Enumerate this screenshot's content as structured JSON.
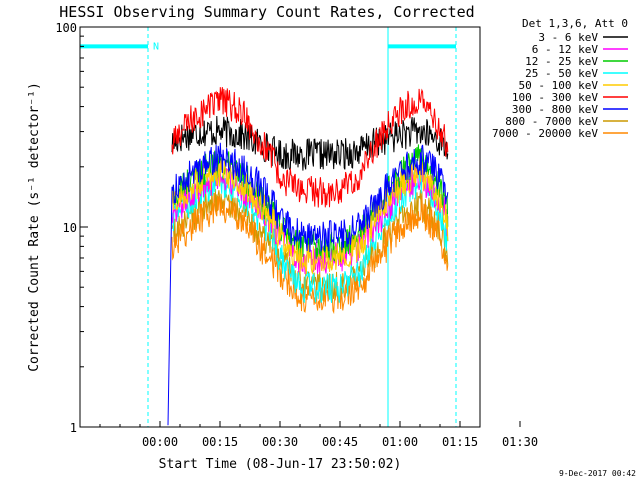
{
  "chart_data": {
    "type": "line",
    "title": "HESSI Observing Summary Count Rates, Corrected",
    "xlabel": "Start Time (08-Jun-17 23:50:02)",
    "ylabel": "Corrected Count Rate (s⁻¹ detector⁻¹)",
    "yscale": "log",
    "xlim": [
      -10,
      90
    ],
    "ylim": [
      1,
      100
    ],
    "x_unit": "minutes after 08-Jun-17 23:50:02",
    "x_ticks": [
      {
        "value": 10,
        "label": "00:00"
      },
      {
        "value": 25,
        "label": "00:15"
      },
      {
        "value": 40,
        "label": "00:30"
      },
      {
        "value": 55,
        "label": "00:45"
      },
      {
        "value": 70,
        "label": "01:00"
      },
      {
        "value": 85,
        "label": "01:15"
      },
      {
        "value": 100,
        "label": "01:30"
      }
    ],
    "y_ticks": [
      {
        "value": 1,
        "label": "1"
      },
      {
        "value": 10,
        "label": "10"
      },
      {
        "value": 100,
        "label": "100"
      }
    ],
    "legend_title": "Det 1,3,6, Att 0",
    "legend_position": "right",
    "grid": false,
    "series": [
      {
        "name": "3 - 6 keV",
        "color": "#000000",
        "x": [
          13,
          15,
          20,
          25,
          30,
          35,
          40,
          45,
          50,
          55,
          60,
          65,
          70,
          75,
          80,
          82
        ],
        "y": [
          26,
          28,
          30,
          30,
          29,
          26,
          23,
          23,
          23,
          23,
          24,
          27,
          29,
          30,
          27,
          24
        ]
      },
      {
        "name": "6 - 12 keV",
        "color": "#ff00ff",
        "x": [
          13,
          15,
          20,
          25,
          30,
          35,
          40,
          45,
          50,
          55,
          60,
          65,
          70,
          75,
          80,
          82
        ],
        "y": [
          12,
          13,
          16,
          18,
          16,
          13,
          9,
          7,
          7,
          7,
          8,
          11,
          15,
          18,
          14,
          10
        ]
      },
      {
        "name": "12 - 25 keV",
        "color": "#00cc00",
        "x": [
          13,
          15,
          20,
          25,
          30,
          35,
          40,
          45,
          50,
          55,
          60,
          65,
          70,
          75,
          80,
          82
        ],
        "y": [
          14,
          15,
          19,
          21,
          19,
          14,
          10,
          8,
          8,
          8,
          9,
          13,
          18,
          22,
          16,
          11
        ]
      },
      {
        "name": "25 - 50 keV",
        "color": "#00ffff",
        "x": [
          13,
          15,
          20,
          25,
          30,
          35,
          40,
          45,
          50,
          55,
          60,
          65,
          70,
          75,
          80,
          82
        ],
        "y": [
          11,
          12,
          15,
          17,
          15,
          11,
          7,
          5,
          5,
          5,
          6,
          10,
          14,
          17,
          12,
          8
        ]
      },
      {
        "name": "50 - 100 keV",
        "color": "#ffcc00",
        "x": [
          13,
          15,
          20,
          25,
          30,
          35,
          40,
          45,
          50,
          55,
          60,
          65,
          70,
          75,
          80,
          82
        ],
        "y": [
          13,
          14,
          17,
          19,
          17,
          13,
          9,
          7,
          7,
          7,
          8,
          12,
          16,
          19,
          14,
          10
        ]
      },
      {
        "name": "100 - 300 keV",
        "color": "#ff0000",
        "x": [
          13,
          15,
          20,
          25,
          30,
          35,
          40,
          45,
          50,
          55,
          60,
          65,
          70,
          75,
          80,
          82
        ],
        "y": [
          25,
          30,
          37,
          43,
          38,
          27,
          18,
          15,
          15,
          15,
          18,
          28,
          38,
          43,
          31,
          24
        ]
      },
      {
        "name": "300 - 800 keV",
        "color": "#0000ff",
        "x": [
          13,
          15,
          20,
          25,
          30,
          35,
          40,
          45,
          50,
          55,
          60,
          65,
          70,
          75,
          80,
          82
        ],
        "y": [
          15,
          16,
          20,
          22,
          20,
          16,
          11,
          9,
          9,
          9,
          10,
          14,
          19,
          22,
          18,
          13
        ]
      },
      {
        "name": "800 - 7000 keV",
        "color": "#cc9900",
        "x": [
          13,
          15,
          20,
          25,
          30,
          35,
          40,
          45,
          50,
          55,
          60,
          65,
          70,
          75,
          80,
          82
        ],
        "y": [
          9,
          10,
          12,
          14,
          12,
          9,
          7,
          5,
          5,
          5,
          6,
          8,
          11,
          13,
          10,
          7
        ]
      },
      {
        "name": "7000 - 20000 keV",
        "color": "#ff8800",
        "x": [
          13,
          15,
          20,
          25,
          30,
          35,
          40,
          45,
          50,
          55,
          60,
          65,
          70,
          75,
          80,
          82
        ],
        "y": [
          8,
          9,
          11,
          13,
          11,
          8,
          6,
          4.5,
          4.5,
          4.5,
          5,
          7,
          10,
          12,
          9,
          6
        ]
      }
    ],
    "annotations": [
      {
        "kind": "night",
        "label": "N",
        "x_start": -10,
        "x_end": 7,
        "y": 80
      },
      {
        "kind": "night",
        "label": "",
        "x_start": 67,
        "x_end": 84,
        "y": 80
      }
    ],
    "boundary_lines": [
      {
        "x": -10,
        "style": "solid"
      },
      {
        "x": 7,
        "style": "dashed"
      },
      {
        "x": 67,
        "style": "solid"
      },
      {
        "x": 84,
        "style": "dashed"
      }
    ],
    "boundary_color": "#00ffff",
    "timestamp": "9-Dec-2017 00:42"
  }
}
